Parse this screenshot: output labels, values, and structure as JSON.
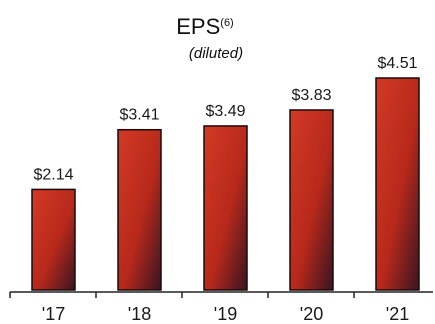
{
  "chart_data": {
    "type": "bar",
    "title": "EPS",
    "title_superscript": "(6)",
    "subtitle": "(diluted)",
    "categories": [
      "'17",
      "'18",
      "'19",
      "'20",
      "'21"
    ],
    "values": [
      2.14,
      3.41,
      3.49,
      3.83,
      4.51
    ],
    "value_labels": [
      "$2.14",
      "$3.41",
      "$3.49",
      "$3.83",
      "$4.51"
    ],
    "xlabel": "",
    "ylabel": "",
    "ylim": [
      0,
      4.51
    ],
    "grid": false,
    "legend": "none",
    "colors": {
      "bar_top": "#d23a26",
      "bar_mid": "#b8291b",
      "bar_bottom": "#3a1420",
      "bar_edge": "#1a0a0a",
      "axis": "#222222"
    }
  }
}
